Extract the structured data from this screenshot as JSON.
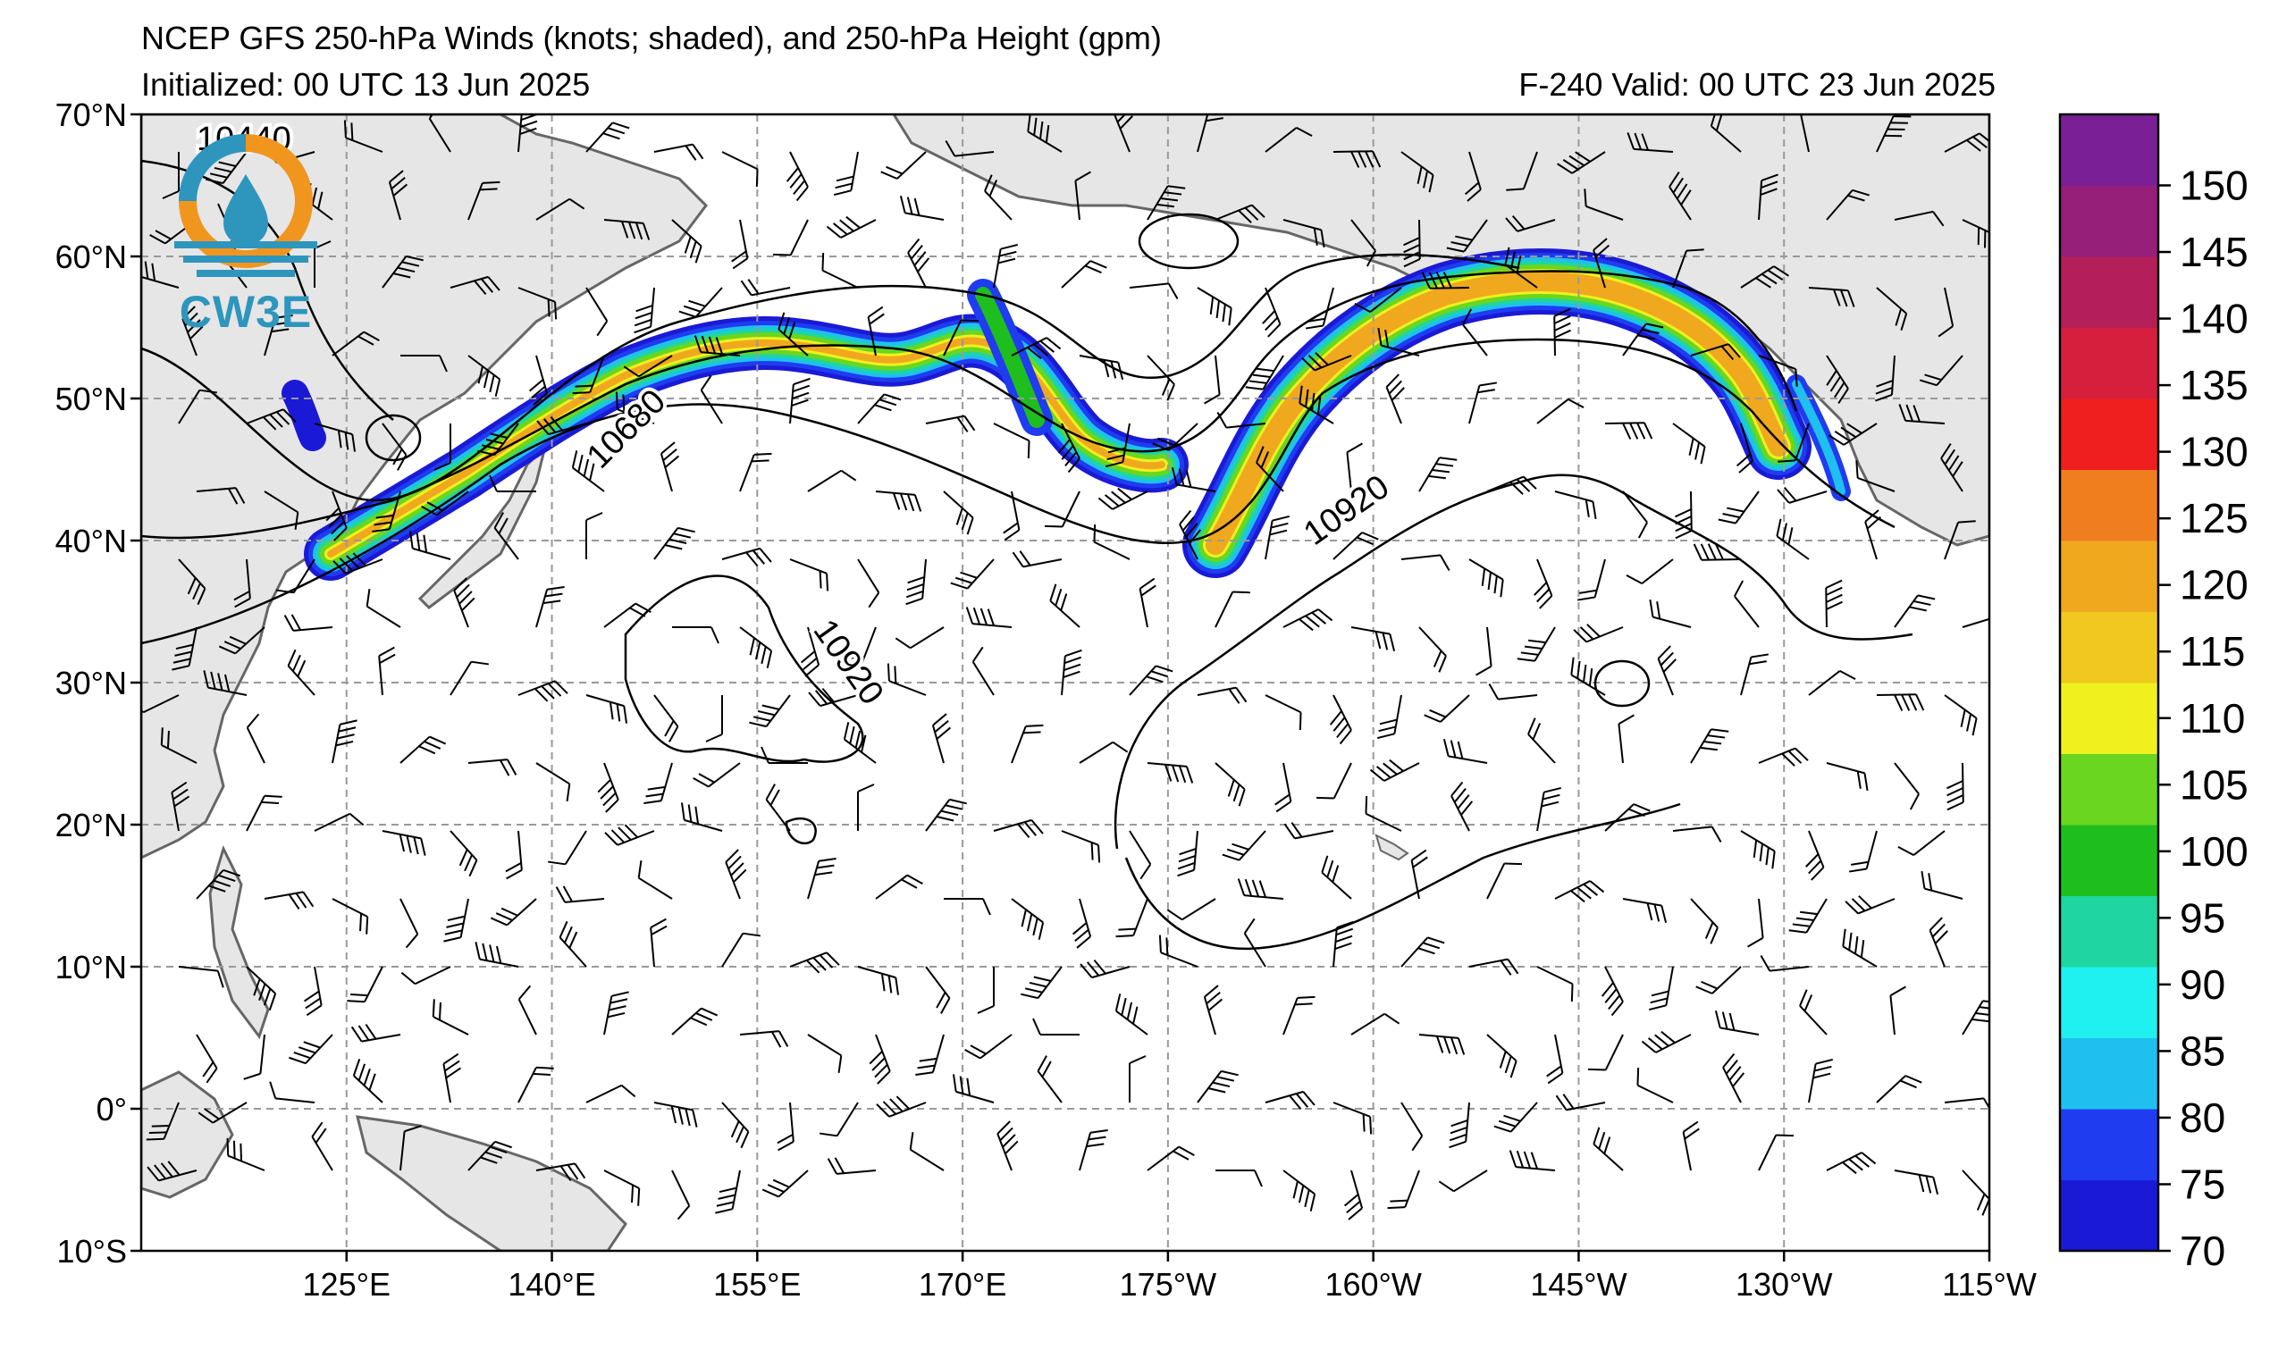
{
  "header": {
    "title": "NCEP GFS 250-hPa Winds (knots; shaded), and 250-hPa Height (gpm)",
    "initialized": "Initialized: 00 UTC 13 Jun 2025",
    "valid": "F-240  Valid: 00 UTC 23 Jun 2025"
  },
  "logo": {
    "text": "CW3E"
  },
  "map": {
    "lat_labels": [
      "70°N",
      "60°N",
      "50°N",
      "40°N",
      "30°N",
      "20°N",
      "10°N",
      "0°",
      "10°S"
    ],
    "lon_labels": [
      "125°E",
      "140°E",
      "155°E",
      "170°E",
      "175°W",
      "160°W",
      "145°W",
      "130°W",
      "115°W"
    ],
    "contour_labels": [
      {
        "text": "10680",
        "lon": 146,
        "lat": 47.3,
        "angle": -45
      },
      {
        "text": "10920",
        "lon": 198.5,
        "lat": 41.5,
        "angle": -35
      },
      {
        "text": "10920",
        "lon": 161,
        "lat": 31,
        "angle": 55
      },
      {
        "text": "10440",
        "lon": 117.5,
        "lat": 67.5,
        "angle": 0
      }
    ]
  },
  "colorbar": {
    "ticks": [
      "70",
      "75",
      "80",
      "85",
      "90",
      "95",
      "100",
      "105",
      "110",
      "115",
      "120",
      "125",
      "130",
      "135",
      "140",
      "145",
      "150"
    ],
    "colors": [
      "#1a1ad6",
      "#1f3cf0",
      "#1fc0f0",
      "#1ff0f0",
      "#1fd6a0",
      "#1fbe1f",
      "#6ad61f",
      "#f0f01f",
      "#f0c81f",
      "#f0a81f",
      "#f07e1f",
      "#f01f1f",
      "#d61f3c",
      "#b41f5a",
      "#961f7a",
      "#7a1f96"
    ]
  }
}
